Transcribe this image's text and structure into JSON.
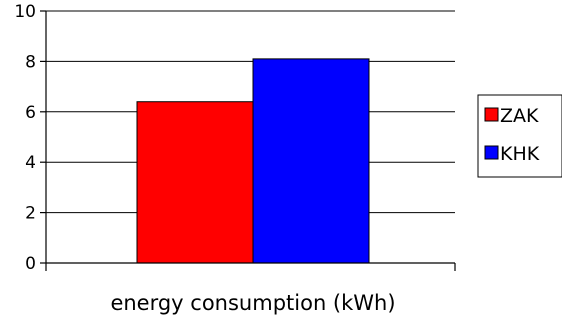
{
  "chart_data": {
    "type": "bar",
    "categories": [
      ""
    ],
    "series": [
      {
        "name": "ZAK",
        "values": [
          6.4
        ],
        "color": "#ff0000"
      },
      {
        "name": "KHK",
        "values": [
          8.1
        ],
        "color": "#0000ff"
      }
    ],
    "xlabel": "energy consumption (kWh)",
    "ylabel": "",
    "ylim": [
      0,
      10
    ],
    "yticks": [
      "0",
      "2",
      "4",
      "6",
      "8",
      "10"
    ],
    "grid": true,
    "legend": "right"
  }
}
